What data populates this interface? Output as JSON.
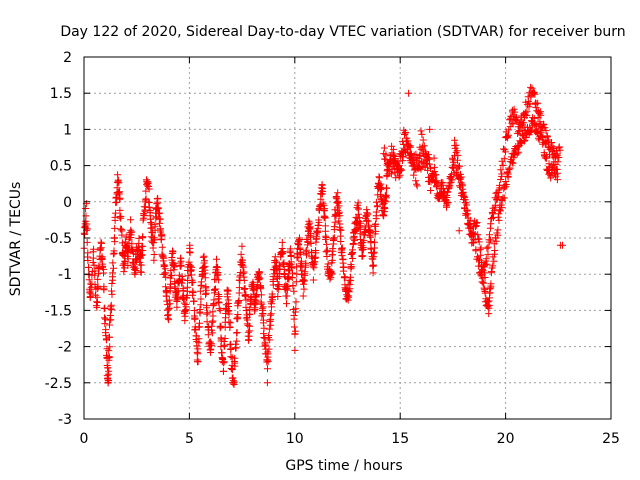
{
  "chart_data": {
    "type": "scatter",
    "title": "Day 122 of 2020, Sidereal Day-to-day VTEC variation (SDTVAR) for receiver burn",
    "xlabel": "GPS time / hours",
    "ylabel": "SDTVAR / TECUs",
    "xlim": [
      0,
      25
    ],
    "ylim": [
      -3,
      2
    ],
    "xticks": [
      0,
      5,
      10,
      15,
      20,
      25
    ],
    "yticks": [
      -3,
      -2.5,
      -2,
      -1.5,
      -1,
      -0.5,
      0,
      0.5,
      1,
      1.5,
      2
    ],
    "xtick_labels": [
      "0",
      "5",
      "10",
      "15",
      "20",
      "25"
    ],
    "ytick_labels": [
      "-3",
      "-2.5",
      "-2",
      "-1.5",
      "-1",
      "-0.5",
      "0",
      "0.5",
      "1",
      "1.5",
      "2"
    ],
    "grid": true,
    "marker": "+",
    "color": "#ff0000",
    "series": [
      {
        "name": "SDTVAR",
        "trace": [
          [
            0.0,
            -0.6
          ],
          [
            0.1,
            -0.1
          ],
          [
            0.2,
            -0.9
          ],
          [
            0.3,
            -1.3
          ],
          [
            0.45,
            -0.7
          ],
          [
            0.6,
            -1.5
          ],
          [
            0.7,
            -1.0
          ],
          [
            0.8,
            -0.6
          ],
          [
            0.9,
            -0.9
          ],
          [
            1.0,
            -1.6
          ],
          [
            1.1,
            -2.2
          ],
          [
            1.15,
            -2.5
          ],
          [
            1.2,
            -1.9
          ],
          [
            1.3,
            -1.4
          ],
          [
            1.4,
            -0.8
          ],
          [
            1.5,
            -0.1
          ],
          [
            1.6,
            0.3
          ],
          [
            1.7,
            0.0
          ],
          [
            1.8,
            -0.6
          ],
          [
            1.9,
            -0.9
          ],
          [
            2.0,
            -0.5
          ],
          [
            2.1,
            -0.8
          ],
          [
            2.2,
            -0.3
          ],
          [
            2.3,
            -0.7
          ],
          [
            2.4,
            -1.0
          ],
          [
            2.5,
            -0.7
          ],
          [
            2.6,
            -0.6
          ],
          [
            2.7,
            -0.9
          ],
          [
            2.8,
            -0.4
          ],
          [
            2.9,
            0.0
          ],
          [
            3.0,
            0.3
          ],
          [
            3.1,
            0.0
          ],
          [
            3.2,
            -0.4
          ],
          [
            3.3,
            -0.7
          ],
          [
            3.4,
            -0.2
          ],
          [
            3.5,
            0.0
          ],
          [
            3.6,
            -0.3
          ],
          [
            3.7,
            -0.6
          ],
          [
            3.8,
            -0.9
          ],
          [
            3.9,
            -1.2
          ],
          [
            4.0,
            -1.6
          ],
          [
            4.1,
            -1.2
          ],
          [
            4.2,
            -0.7
          ],
          [
            4.3,
            -1.0
          ],
          [
            4.4,
            -1.4
          ],
          [
            4.5,
            -1.1
          ],
          [
            4.6,
            -0.8
          ],
          [
            4.7,
            -1.3
          ],
          [
            4.8,
            -1.6
          ],
          [
            4.9,
            -1.2
          ],
          [
            5.0,
            -0.7
          ],
          [
            5.1,
            -1.0
          ],
          [
            5.2,
            -1.4
          ],
          [
            5.3,
            -1.8
          ],
          [
            5.4,
            -2.2
          ],
          [
            5.5,
            -1.5
          ],
          [
            5.6,
            -1.0
          ],
          [
            5.7,
            -0.8
          ],
          [
            5.8,
            -1.3
          ],
          [
            5.9,
            -1.8
          ],
          [
            6.0,
            -2.1
          ],
          [
            6.1,
            -1.6
          ],
          [
            6.2,
            -1.2
          ],
          [
            6.3,
            -0.8
          ],
          [
            6.4,
            -1.3
          ],
          [
            6.5,
            -1.9
          ],
          [
            6.6,
            -2.3
          ],
          [
            6.7,
            -1.7
          ],
          [
            6.8,
            -1.2
          ],
          [
            6.9,
            -1.6
          ],
          [
            7.0,
            -2.2
          ],
          [
            7.1,
            -2.5
          ],
          [
            7.2,
            -2.0
          ],
          [
            7.3,
            -1.5
          ],
          [
            7.4,
            -1.0
          ],
          [
            7.5,
            -0.7
          ],
          [
            7.6,
            -1.1
          ],
          [
            7.7,
            -1.5
          ],
          [
            7.8,
            -1.9
          ],
          [
            7.9,
            -1.4
          ],
          [
            8.0,
            -1.1
          ],
          [
            8.1,
            -1.5
          ],
          [
            8.2,
            -1.2
          ],
          [
            8.3,
            -0.9
          ],
          [
            8.4,
            -1.3
          ],
          [
            8.5,
            -1.6
          ],
          [
            8.6,
            -2.0
          ],
          [
            8.7,
            -2.2
          ],
          [
            8.8,
            -1.8
          ],
          [
            8.9,
            -1.4
          ],
          [
            9.0,
            -1.0
          ],
          [
            9.1,
            -0.8
          ],
          [
            9.2,
            -1.2
          ],
          [
            9.3,
            -0.9
          ],
          [
            9.4,
            -0.6
          ],
          [
            9.5,
            -1.0
          ],
          [
            9.6,
            -1.3
          ],
          [
            9.7,
            -1.0
          ],
          [
            9.8,
            -0.7
          ],
          [
            9.9,
            -1.0
          ],
          [
            10.0,
            -2.0
          ],
          [
            10.1,
            -0.8
          ],
          [
            10.2,
            -0.5
          ],
          [
            10.3,
            -0.9
          ],
          [
            10.4,
            -1.2
          ],
          [
            10.5,
            -0.9
          ],
          [
            10.6,
            -0.5
          ],
          [
            10.7,
            -0.3
          ],
          [
            10.8,
            -0.7
          ],
          [
            10.9,
            -1.0
          ],
          [
            11.0,
            -0.6
          ],
          [
            11.1,
            -0.3
          ],
          [
            11.2,
            0.0
          ],
          [
            11.3,
            0.2
          ],
          [
            11.4,
            -0.2
          ],
          [
            11.5,
            -0.6
          ],
          [
            11.6,
            -1.0
          ],
          [
            11.7,
            -1.1
          ],
          [
            11.8,
            -0.7
          ],
          [
            11.9,
            -0.3
          ],
          [
            12.0,
            0.1
          ],
          [
            12.1,
            -0.2
          ],
          [
            12.2,
            -0.6
          ],
          [
            12.3,
            -0.9
          ],
          [
            12.4,
            -1.2
          ],
          [
            12.5,
            -1.3
          ],
          [
            12.6,
            -1.1
          ],
          [
            12.7,
            -0.8
          ],
          [
            12.8,
            -0.5
          ],
          [
            12.9,
            -0.3
          ],
          [
            13.0,
            -0.1
          ],
          [
            13.1,
            -0.4
          ],
          [
            13.2,
            -0.8
          ],
          [
            13.3,
            -0.5
          ],
          [
            13.4,
            -0.2
          ],
          [
            13.5,
            -0.3
          ],
          [
            13.6,
            -0.6
          ],
          [
            13.7,
            -0.9
          ],
          [
            13.8,
            -0.4
          ],
          [
            13.9,
            0.0
          ],
          [
            14.0,
            0.3
          ],
          [
            14.1,
            0.1
          ],
          [
            14.2,
            -0.2
          ],
          [
            14.3,
            0.0
          ],
          [
            14.4,
            0.4
          ],
          [
            14.6,
            0.7
          ],
          [
            14.8,
            0.5
          ],
          [
            15.0,
            0.4
          ],
          [
            15.2,
            1.0
          ],
          [
            15.4,
            0.7
          ],
          [
            15.6,
            0.5
          ],
          [
            15.8,
            0.3
          ],
          [
            16.0,
            0.9
          ],
          [
            16.2,
            0.6
          ],
          [
            16.4,
            0.2
          ],
          [
            16.6,
            0.5
          ],
          [
            16.8,
            0.0
          ],
          [
            17.0,
            0.3
          ],
          [
            17.2,
            0.0
          ],
          [
            17.4,
            0.3
          ],
          [
            17.6,
            0.8
          ],
          [
            17.8,
            0.4
          ],
          [
            18.0,
            0.1
          ],
          [
            18.2,
            -0.2
          ],
          [
            18.4,
            -0.5
          ],
          [
            18.6,
            -0.3
          ],
          [
            18.8,
            -0.7
          ],
          [
            19.0,
            -1.0
          ],
          [
            19.2,
            -0.6
          ],
          [
            19.4,
            -0.2
          ],
          [
            19.6,
            0.1
          ],
          [
            19.8,
            0.4
          ],
          [
            20.0,
            0.8
          ],
          [
            20.2,
            1.1
          ],
          [
            20.4,
            1.2
          ],
          [
            20.6,
            1.0
          ],
          [
            20.8,
            1.1
          ],
          [
            21.0,
            1.3
          ],
          [
            21.2,
            1.5
          ],
          [
            21.4,
            1.4
          ],
          [
            21.6,
            1.2
          ],
          [
            21.8,
            1.0
          ],
          [
            22.0,
            0.8
          ],
          [
            22.2,
            0.7
          ],
          [
            22.4,
            0.6
          ],
          [
            22.6,
            0.7
          ]
        ],
        "trace_b": [
          [
            14.2,
            0.7
          ],
          [
            14.5,
            0.5
          ],
          [
            14.8,
            0.4
          ],
          [
            15.0,
            0.6
          ],
          [
            15.3,
            0.8
          ],
          [
            15.6,
            0.6
          ],
          [
            16.0,
            0.5
          ],
          [
            16.3,
            0.6
          ],
          [
            16.6,
            0.3
          ],
          [
            17.0,
            0.0
          ],
          [
            17.3,
            0.2
          ],
          [
            17.6,
            0.5
          ],
          [
            17.9,
            0.2
          ],
          [
            18.1,
            -0.1
          ],
          [
            18.4,
            -0.4
          ],
          [
            18.7,
            -0.8
          ],
          [
            18.9,
            -1.1
          ],
          [
            19.1,
            -1.4
          ],
          [
            19.2,
            -1.5
          ],
          [
            19.3,
            -1.1
          ],
          [
            19.5,
            -0.6
          ],
          [
            19.7,
            -0.2
          ],
          [
            19.9,
            0.1
          ],
          [
            20.1,
            0.4
          ],
          [
            20.3,
            0.6
          ],
          [
            20.5,
            0.7
          ],
          [
            20.7,
            0.8
          ],
          [
            20.9,
            0.9
          ],
          [
            21.1,
            1.0
          ],
          [
            21.3,
            1.1
          ],
          [
            21.5,
            1.0
          ],
          [
            21.7,
            0.9
          ],
          [
            21.9,
            0.6
          ],
          [
            22.1,
            0.4
          ],
          [
            22.3,
            0.5
          ],
          [
            22.5,
            0.3
          ]
        ],
        "isolated": [
          [
            15.4,
            1.5
          ],
          [
            16.4,
            1.0
          ],
          [
            17.8,
            -0.4
          ],
          [
            22.7,
            -0.6
          ],
          [
            22.6,
            -0.6
          ],
          [
            8.7,
            -2.5
          ],
          [
            1.1,
            -2.4
          ]
        ]
      }
    ]
  }
}
